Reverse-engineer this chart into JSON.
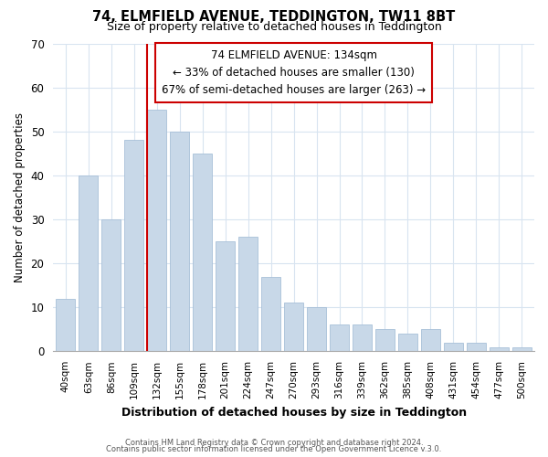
{
  "title": "74, ELMFIELD AVENUE, TEDDINGTON, TW11 8BT",
  "subtitle": "Size of property relative to detached houses in Teddington",
  "xlabel": "Distribution of detached houses by size in Teddington",
  "ylabel": "Number of detached properties",
  "bar_color": "#c8d8e8",
  "bar_edge_color": "#a8c0d8",
  "categories": [
    "40sqm",
    "63sqm",
    "86sqm",
    "109sqm",
    "132sqm",
    "155sqm",
    "178sqm",
    "201sqm",
    "224sqm",
    "247sqm",
    "270sqm",
    "293sqm",
    "316sqm",
    "339sqm",
    "362sqm",
    "385sqm",
    "408sqm",
    "431sqm",
    "454sqm",
    "477sqm",
    "500sqm"
  ],
  "values": [
    12,
    40,
    30,
    48,
    55,
    50,
    45,
    25,
    26,
    17,
    11,
    10,
    6,
    6,
    5,
    4,
    5,
    2,
    2,
    1,
    1
  ],
  "marker_index": 4,
  "marker_color": "#cc0000",
  "ylim": [
    0,
    70
  ],
  "yticks": [
    0,
    10,
    20,
    30,
    40,
    50,
    60,
    70
  ],
  "annotation_title": "74 ELMFIELD AVENUE: 134sqm",
  "annotation_line1": "← 33% of detached houses are smaller (130)",
  "annotation_line2": "67% of semi-detached houses are larger (263) →",
  "footer_line1": "Contains HM Land Registry data © Crown copyright and database right 2024.",
  "footer_line2": "Contains public sector information licensed under the Open Government Licence v.3.0.",
  "background_color": "#ffffff",
  "grid_color": "#d8e4f0"
}
